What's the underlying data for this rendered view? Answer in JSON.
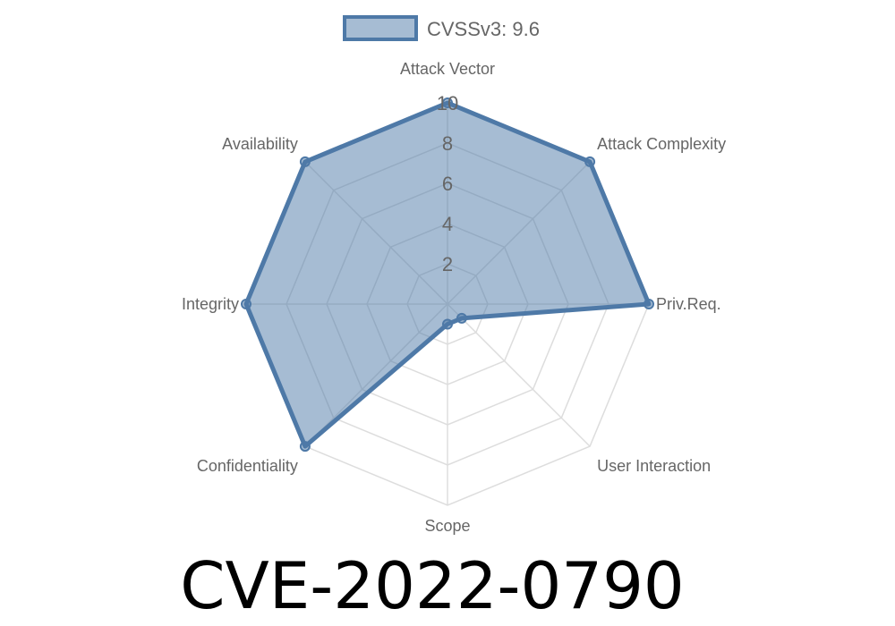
{
  "chart_data": {
    "type": "radar",
    "title": "CVE-2022-0790",
    "categories": [
      "Attack Vector",
      "Attack Complexity",
      "Priv.Req.",
      "User Interaction",
      "Scope",
      "Confidentiality",
      "Integrity",
      "Availability"
    ],
    "series": [
      {
        "name": "CVSSv3: 9.6",
        "values": [
          10,
          10,
          10,
          1,
          1,
          10,
          10,
          10
        ],
        "color": "#4e79a7",
        "fill": "rgba(78,121,167,0.5)"
      }
    ],
    "rlim": [
      0,
      10
    ],
    "ticks": [
      "2",
      "4",
      "6",
      "8",
      "10"
    ],
    "tick_values": [
      2,
      4,
      6,
      8,
      10
    ],
    "grid": true,
    "legend_position": "top"
  }
}
